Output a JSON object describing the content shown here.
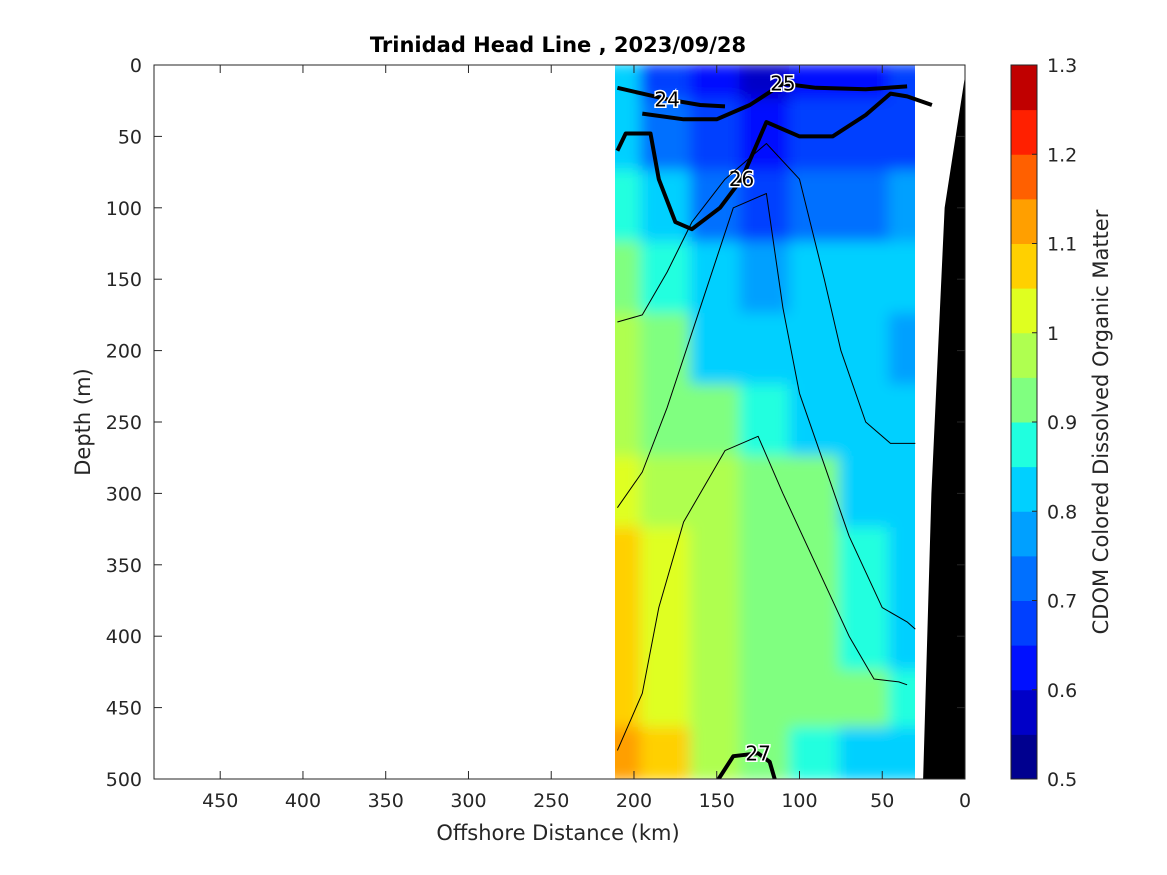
{
  "chart_data": {
    "type": "heatmap",
    "title": "Trinidad Head Line , 2023/09/28",
    "xlabel": "Offshore Distance (km)",
    "ylabel": "Depth (m)",
    "colorbar_label": "CDOM Colored Dissolved Organic Matter",
    "x_axis_reversed": true,
    "y_axis_reversed": true,
    "xlim": [
      0,
      490
    ],
    "ylim": [
      0,
      500
    ],
    "x_ticks": [
      450,
      400,
      350,
      300,
      250,
      200,
      150,
      100,
      50,
      0
    ],
    "y_ticks": [
      0,
      50,
      100,
      150,
      200,
      250,
      300,
      350,
      400,
      450,
      500
    ],
    "colorbar_range": [
      0.5,
      1.3
    ],
    "colorbar_ticks": [
      "0.5",
      "0.6",
      "0.7",
      "0.8",
      "0.9",
      "1",
      "1.1",
      "1.2",
      "1.3"
    ],
    "colorbar_levels": 16,
    "colormap": [
      "#00008f",
      "#0000c8",
      "#0010ff",
      "#0040ff",
      "#0070ff",
      "#00a0ff",
      "#00d0ff",
      "#20ffdf",
      "#50ffaf",
      "#80ff80",
      "#afff50",
      "#dfff20",
      "#ffd000",
      "#ff9f00",
      "#ff6000",
      "#ff2000",
      "#c00000"
    ],
    "data_columns_x_km": [
      210,
      180,
      150,
      120,
      90,
      60,
      30
    ],
    "data_rows_depth_m": [
      10,
      50,
      100,
      150,
      200,
      250,
      300,
      350,
      400,
      450,
      490
    ],
    "cdom_values": [
      [
        0.8,
        0.7,
        0.62,
        0.6,
        0.62,
        0.64,
        0.66
      ],
      [
        0.82,
        0.74,
        0.68,
        0.64,
        0.66,
        0.68,
        0.7
      ],
      [
        0.88,
        0.82,
        0.74,
        0.7,
        0.72,
        0.74,
        0.76
      ],
      [
        0.92,
        0.86,
        0.8,
        0.78,
        0.8,
        0.8,
        0.8
      ],
      [
        0.96,
        0.9,
        0.84,
        0.82,
        0.8,
        0.8,
        0.78
      ],
      [
        0.98,
        0.94,
        0.9,
        0.86,
        0.84,
        0.82,
        0.8
      ],
      [
        1.03,
        0.99,
        0.97,
        0.93,
        0.9,
        0.85,
        0.82
      ],
      [
        1.05,
        1.01,
        0.98,
        0.94,
        0.92,
        0.88,
        0.84
      ],
      [
        1.05,
        1.0,
        0.96,
        0.94,
        0.92,
        0.88,
        0.85
      ],
      [
        1.08,
        1.02,
        0.98,
        0.95,
        0.93,
        0.9,
        0.86
      ],
      [
        1.12,
        1.05,
        0.98,
        0.92,
        0.88,
        0.85,
        0.82
      ]
    ],
    "density_contours": [
      {
        "label": "24",
        "major": true,
        "points": [
          [
            210,
            16
          ],
          [
            195,
            20
          ],
          [
            180,
            24
          ],
          [
            160,
            28
          ],
          [
            145,
            29
          ]
        ]
      },
      {
        "label": "25",
        "major": true,
        "points": [
          [
            195,
            34
          ],
          [
            170,
            38
          ],
          [
            150,
            38
          ],
          [
            130,
            28
          ],
          [
            110,
            13
          ],
          [
            90,
            16
          ],
          [
            60,
            17
          ],
          [
            35,
            15
          ]
        ]
      },
      {
        "label": "26",
        "major": true,
        "points": [
          [
            210,
            60
          ],
          [
            205,
            48
          ],
          [
            190,
            48
          ],
          [
            185,
            80
          ],
          [
            175,
            110
          ],
          [
            165,
            115
          ],
          [
            148,
            100
          ],
          [
            135,
            80
          ],
          [
            120,
            40
          ],
          [
            100,
            50
          ],
          [
            80,
            50
          ],
          [
            60,
            35
          ],
          [
            45,
            20
          ],
          [
            35,
            22
          ],
          [
            20,
            28
          ]
        ]
      },
      {
        "label": "27",
        "major": true,
        "points": [
          [
            150,
            502
          ],
          [
            140,
            484
          ],
          [
            125,
            482
          ],
          [
            118,
            488
          ],
          [
            115,
            500
          ]
        ]
      },
      {
        "major": false,
        "points": [
          [
            210,
            180
          ],
          [
            195,
            175
          ],
          [
            180,
            145
          ],
          [
            165,
            110
          ],
          [
            145,
            80
          ],
          [
            120,
            55
          ],
          [
            100,
            80
          ],
          [
            85,
            150
          ],
          [
            75,
            200
          ],
          [
            60,
            250
          ],
          [
            45,
            265
          ],
          [
            30,
            265
          ]
        ]
      },
      {
        "major": false,
        "points": [
          [
            210,
            310
          ],
          [
            195,
            285
          ],
          [
            180,
            240
          ],
          [
            160,
            170
          ],
          [
            140,
            100
          ],
          [
            120,
            90
          ],
          [
            110,
            170
          ],
          [
            100,
            230
          ],
          [
            85,
            280
          ],
          [
            70,
            330
          ],
          [
            50,
            380
          ],
          [
            35,
            390
          ],
          [
            30,
            395
          ]
        ]
      },
      {
        "major": false,
        "points": [
          [
            210,
            480
          ],
          [
            195,
            440
          ],
          [
            185,
            380
          ],
          [
            170,
            320
          ],
          [
            155,
            290
          ],
          [
            145,
            270
          ],
          [
            125,
            260
          ],
          [
            110,
            300
          ],
          [
            90,
            350
          ],
          [
            70,
            400
          ],
          [
            55,
            430
          ],
          [
            40,
            432
          ],
          [
            35,
            434
          ]
        ]
      }
    ],
    "bathymetry_profile": [
      [
        25,
        500
      ],
      [
        20,
        300
      ],
      [
        12,
        100
      ],
      [
        0,
        10
      ]
    ]
  }
}
